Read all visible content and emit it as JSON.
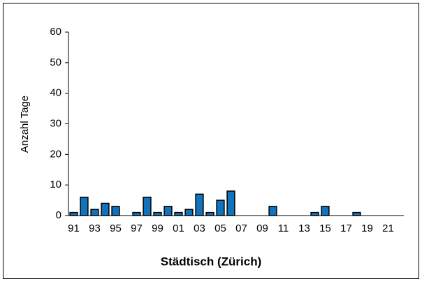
{
  "chart_data": {
    "type": "bar",
    "x_label": "Städtisch (Zürich)",
    "y_label": "Anzahl Tage",
    "categories": [
      "91",
      null,
      "93",
      null,
      "95",
      null,
      "97",
      null,
      "99",
      null,
      "01",
      null,
      "03",
      null,
      "05",
      null,
      "07",
      null,
      "09",
      null,
      "11",
      null,
      "13",
      null,
      "15",
      null,
      "17",
      null,
      "19",
      null,
      "21",
      null
    ],
    "values": [
      1,
      6,
      2,
      4,
      3,
      0,
      1,
      6,
      1,
      3,
      1,
      2,
      7,
      1,
      5,
      8,
      0,
      0,
      0,
      3,
      0,
      0,
      0,
      1,
      3,
      0,
      0,
      1,
      0,
      0,
      0,
      0
    ],
    "color": "#0f74bd",
    "ylim": [
      0,
      60
    ],
    "yticks": [
      0,
      10,
      20,
      30,
      40,
      50,
      60
    ],
    "grid": false
  }
}
